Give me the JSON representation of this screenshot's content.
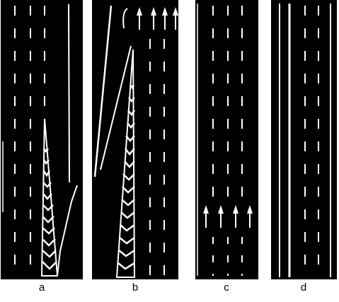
{
  "panels": [
    {
      "id": "a",
      "label": "a"
    },
    {
      "id": "b",
      "label": "b"
    },
    {
      "id": "c",
      "label": "c"
    },
    {
      "id": "d",
      "label": "d"
    }
  ],
  "colors": {
    "road": "#000000",
    "marking": "#ffffff",
    "background": "#ffffff"
  }
}
